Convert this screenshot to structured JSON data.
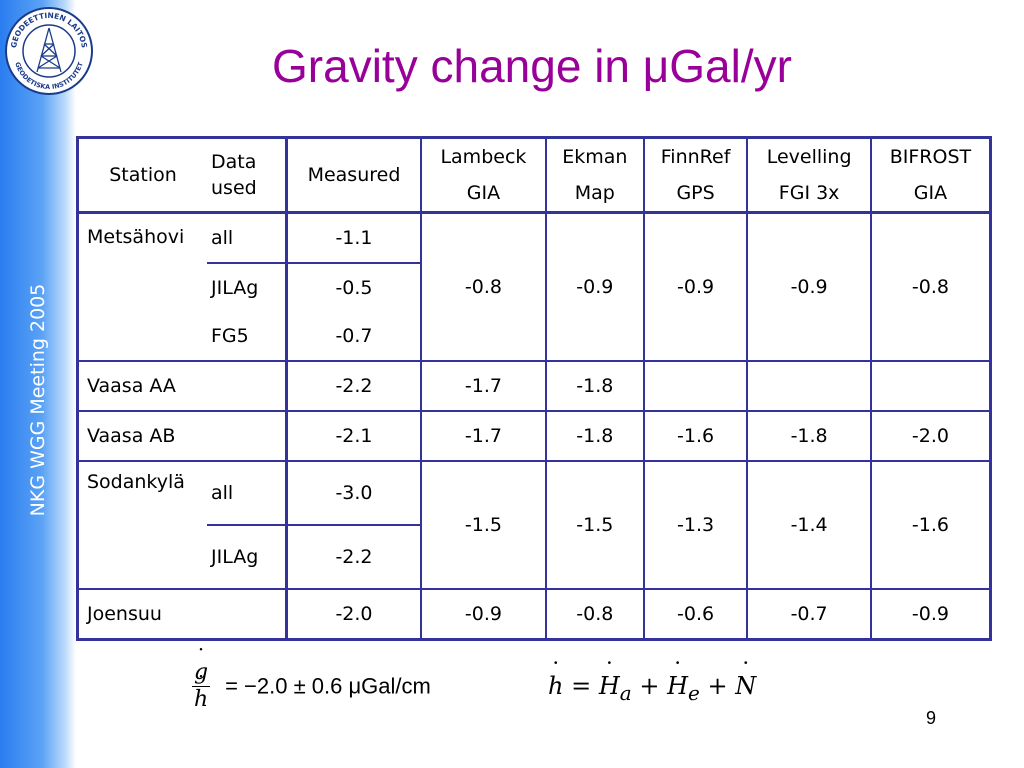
{
  "sidebar": {
    "text": "NKG WGG Meeting 2005"
  },
  "logo": {
    "ring_text_top": "GEODEETTINEN LAITOS",
    "ring_text_bottom": "GEODETISKA INSTITUTET"
  },
  "title": "Gravity change in μGal/yr",
  "table": {
    "headers": {
      "station": "Station",
      "data_used_1": "Data",
      "data_used_2": "used",
      "measured": "Measured",
      "lambeck_1": "Lambeck",
      "lambeck_2": "GIA",
      "ekman_1": "Ekman",
      "ekman_2": "Map",
      "finnref_1": "FinnRef",
      "finnref_2": "GPS",
      "levelling_1": "Levelling",
      "levelling_2": "FGI 3x",
      "bifrost_1": "BIFROST",
      "bifrost_2": "GIA"
    },
    "metsahovi": {
      "station": "Metsähovi",
      "rows": [
        {
          "data": "all",
          "measured": "-1.1"
        },
        {
          "data": "JILAg",
          "measured": "-0.5"
        },
        {
          "data": "FG5",
          "measured": "-0.7"
        }
      ],
      "lambeck": "-0.8",
      "ekman": "-0.9",
      "finnref": "-0.9",
      "levelling": "-0.9",
      "bifrost": "-0.8"
    },
    "vaasa_aa": {
      "station": "Vaasa AA",
      "measured": "-2.2",
      "lambeck": "-1.7",
      "ekman": "-1.8"
    },
    "vaasa_ab": {
      "station": "Vaasa AB",
      "measured": "-2.1",
      "lambeck": "-1.7",
      "ekman": "-1.8",
      "finnref": "-1.6",
      "levelling": "-1.8",
      "bifrost": "-2.0"
    },
    "sodankyla": {
      "station": "Sodankylä",
      "rows": [
        {
          "data": "all",
          "measured": "-3.0"
        },
        {
          "data": "JILAg",
          "measured": "-2.2"
        }
      ],
      "lambeck": "-1.5",
      "ekman": "-1.5",
      "finnref": "-1.3",
      "levelling": "-1.4",
      "bifrost": "-1.6"
    },
    "joensuu": {
      "station": "Joensuu",
      "measured": "-2.0",
      "lambeck": "-0.9",
      "ekman": "-0.8",
      "finnref": "-0.6",
      "levelling": "-0.7",
      "bifrost": "-0.9"
    }
  },
  "formula1": {
    "numerator": "g",
    "denominator": "h",
    "rhs": "= −2.0 ± 0.6 μGal/cm"
  },
  "formula2": {
    "lhs": "h",
    "eq": " = ",
    "t1": "H",
    "t1_sub": "a",
    "plus1": " + ",
    "t2": "H",
    "t2_sub": "e",
    "plus2": " + ",
    "t3": "N"
  },
  "page_number": "9",
  "colors": {
    "title": "#990099",
    "table_border": "#333399",
    "sidebar": "#2a7df0"
  }
}
